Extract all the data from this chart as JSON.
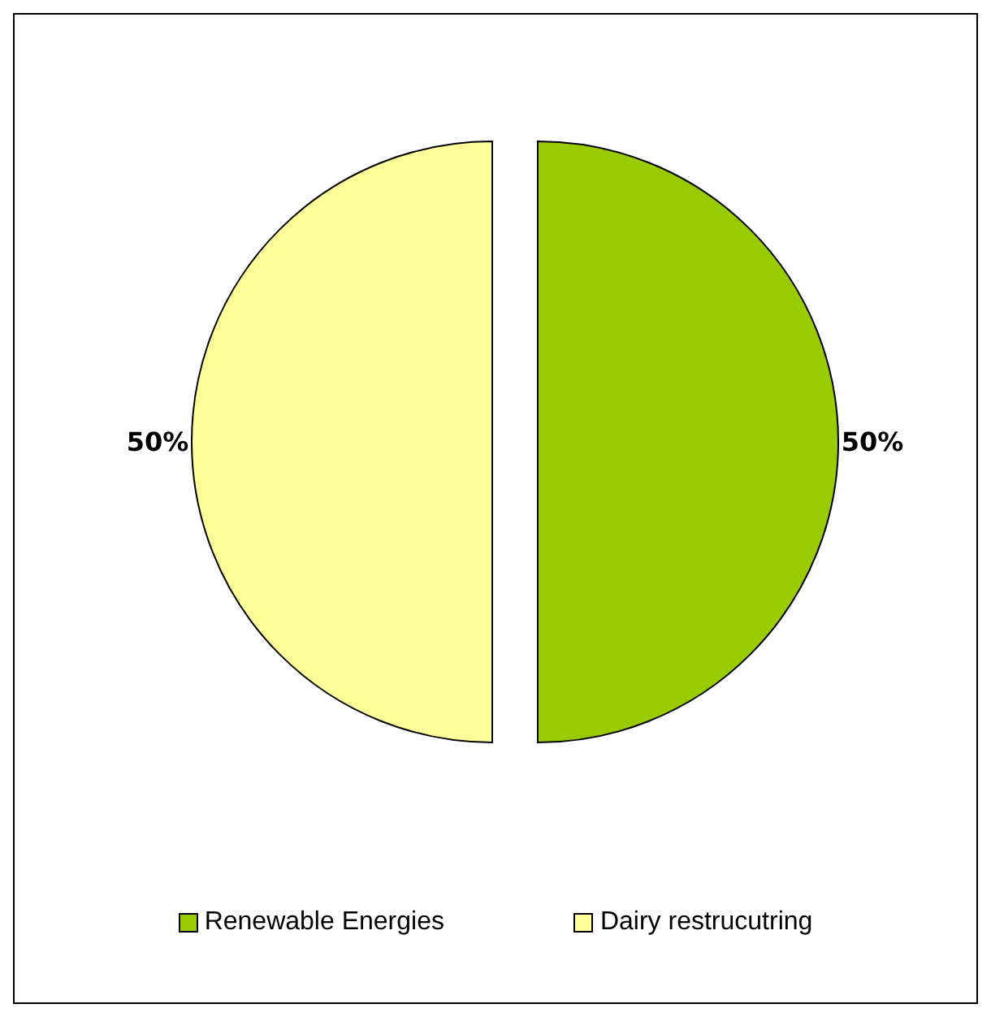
{
  "chart_data": {
    "type": "pie",
    "categories": [
      "Renewable Energies",
      "Dairy restrucutring"
    ],
    "values": [
      50,
      50
    ],
    "colors": [
      "#99cc00",
      "#ffff99"
    ],
    "value_labels": [
      "50%",
      "50%"
    ],
    "legend": "bottom"
  }
}
